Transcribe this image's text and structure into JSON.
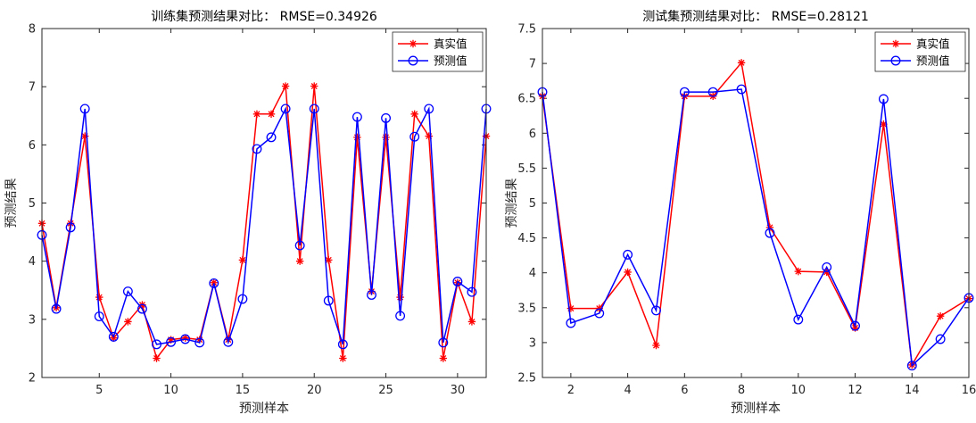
{
  "chart_data": [
    {
      "type": "line",
      "title": "训练集预测结果对比： RMSE=0.34926",
      "xlabel": "预测样本",
      "ylabel": "预测结果",
      "xlim": [
        1,
        32
      ],
      "ylim": [
        2,
        8
      ],
      "xticks": [
        5,
        10,
        15,
        20,
        25,
        30
      ],
      "yticks": [
        2,
        3,
        4,
        5,
        6,
        7,
        8
      ],
      "grid": false,
      "legend_position": "top-right",
      "x": [
        1,
        2,
        3,
        4,
        5,
        6,
        7,
        8,
        9,
        10,
        11,
        12,
        13,
        14,
        15,
        16,
        17,
        18,
        19,
        20,
        21,
        22,
        23,
        24,
        25,
        26,
        27,
        28,
        29,
        30,
        31,
        32
      ],
      "series": [
        {
          "name": "真实值",
          "color": "#ff0000",
          "marker": "asterisk",
          "values": [
            4.65,
            3.2,
            4.65,
            6.15,
            3.38,
            2.68,
            2.96,
            3.25,
            2.33,
            2.65,
            2.68,
            2.65,
            3.63,
            2.65,
            4.02,
            6.53,
            6.53,
            7.01,
            4.0,
            7.01,
            4.02,
            2.33,
            6.13,
            3.48,
            6.13,
            3.38,
            6.53,
            6.15,
            2.33,
            3.63,
            2.96,
            6.15
          ]
        },
        {
          "name": "预测值",
          "color": "#0000ff",
          "marker": "circle",
          "values": [
            4.45,
            3.18,
            4.58,
            6.62,
            3.05,
            2.7,
            3.48,
            3.18,
            2.57,
            2.61,
            2.66,
            2.6,
            3.62,
            2.61,
            3.35,
            5.93,
            6.13,
            6.62,
            4.27,
            6.62,
            3.32,
            2.57,
            6.48,
            3.42,
            6.46,
            3.06,
            6.14,
            6.62,
            2.6,
            3.65,
            3.47,
            6.62
          ]
        }
      ]
    },
    {
      "type": "line",
      "title": "测试集预测结果对比： RMSE=0.28121",
      "xlabel": "预测样本",
      "ylabel": "预测结果",
      "xlim": [
        1,
        16
      ],
      "ylim": [
        2.5,
        7.5
      ],
      "xticks": [
        2,
        4,
        6,
        8,
        10,
        12,
        14,
        16
      ],
      "yticks": [
        2.5,
        3,
        3.5,
        4,
        4.5,
        5,
        5.5,
        6,
        6.5,
        7,
        7.5
      ],
      "grid": false,
      "legend_position": "top-right",
      "x": [
        1,
        2,
        3,
        4,
        5,
        6,
        7,
        8,
        9,
        10,
        11,
        12,
        13,
        14,
        15,
        16
      ],
      "series": [
        {
          "name": "真实值",
          "color": "#ff0000",
          "marker": "asterisk",
          "values": [
            6.53,
            3.49,
            3.49,
            4.01,
            2.96,
            6.53,
            6.53,
            7.01,
            4.65,
            4.02,
            4.01,
            3.21,
            6.13,
            2.68,
            3.38,
            3.63
          ]
        },
        {
          "name": "预测值",
          "color": "#0000ff",
          "marker": "circle",
          "values": [
            6.59,
            3.28,
            3.42,
            4.26,
            3.46,
            6.59,
            6.59,
            6.63,
            4.57,
            3.33,
            4.08,
            3.24,
            6.49,
            2.67,
            3.05,
            3.64
          ]
        }
      ]
    }
  ]
}
